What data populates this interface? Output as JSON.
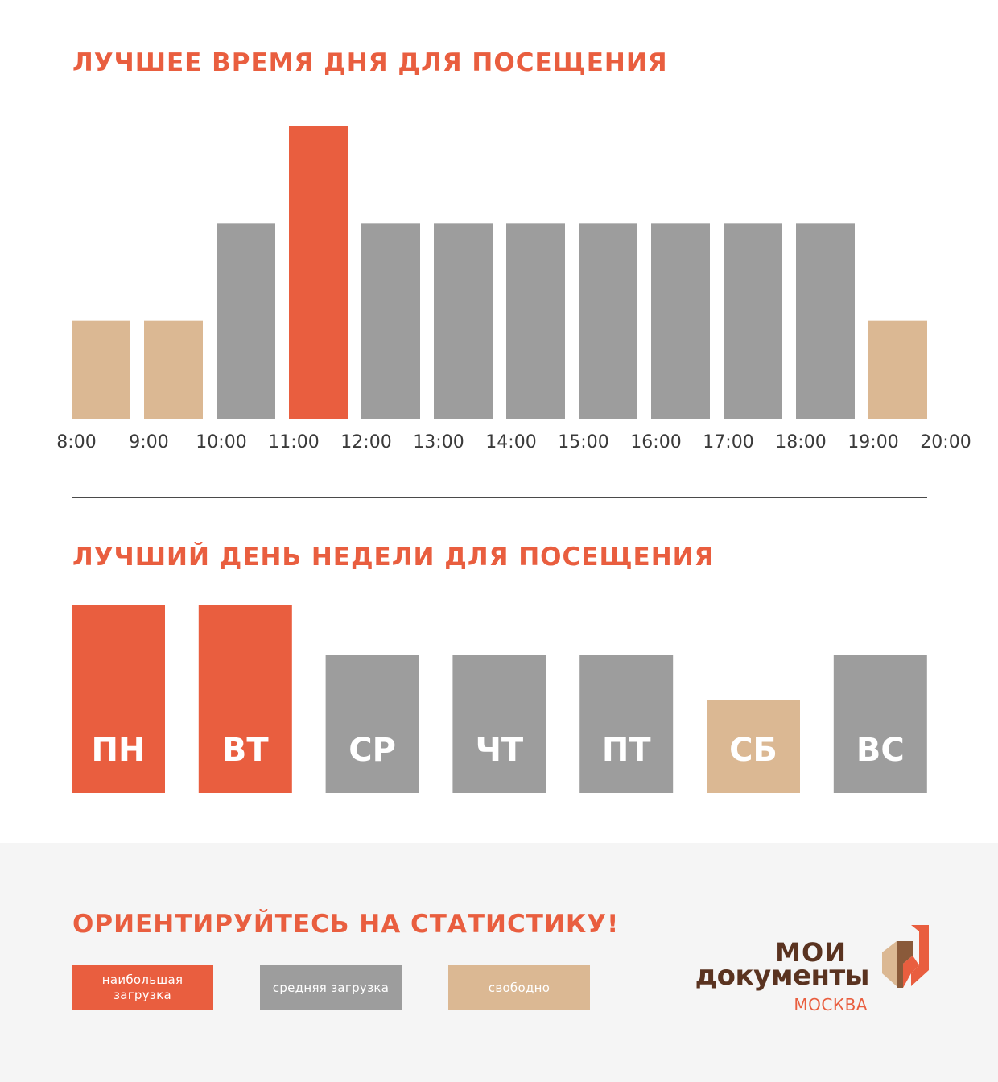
{
  "colors": {
    "max": "#e95e3f",
    "medium": "#9d9d9d",
    "free": "#dbb893",
    "footer_bg": "#f5f5f5",
    "logo_brown": "#5a3320"
  },
  "section_time": {
    "title": "ЛУЧШЕЕ ВРЕМЯ ДНЯ ДЛЯ ПОСЕЩЕНИЯ"
  },
  "section_week": {
    "title": "ЛУЧШИЙ ДЕНЬ НЕДЕЛИ ДЛЯ ПОСЕЩЕНИЯ"
  },
  "footer": {
    "title": "ОРИЕНТИРУЙТЕСЬ НА СТАТИСТИКУ!",
    "legend": [
      {
        "label": "наибольшая загрузка",
        "level": "max"
      },
      {
        "label": "средняя загрузка",
        "level": "medium"
      },
      {
        "label": "свободно",
        "level": "free"
      }
    ],
    "logo": {
      "line1": "МОИ",
      "line2": "документы",
      "line3": "МОСКВА",
      "icon": "moi-dokumenty-emblem-icon"
    }
  },
  "chart_data": [
    {
      "type": "bar",
      "title": "ЛУЧШЕЕ ВРЕМЯ ДНЯ ДЛЯ ПОСЕЩЕНИЯ",
      "x_ticks": [
        "8:00",
        "9:00",
        "10:00",
        "11:00",
        "12:00",
        "13:00",
        "14:00",
        "15:00",
        "16:00",
        "17:00",
        "18:00",
        "19:00",
        "20:00"
      ],
      "categories": [
        "8:00–9:00",
        "9:00–10:00",
        "10:00–11:00",
        "11:00–12:00",
        "12:00–13:00",
        "13:00–14:00",
        "14:00–15:00",
        "15:00–16:00",
        "16:00–17:00",
        "17:00–18:00",
        "18:00–19:00",
        "19:00–20:00"
      ],
      "values": [
        1,
        1,
        2,
        3,
        2,
        2,
        2,
        2,
        2,
        2,
        2,
        1
      ],
      "levels": [
        "free",
        "free",
        "medium",
        "max",
        "medium",
        "medium",
        "medium",
        "medium",
        "medium",
        "medium",
        "medium",
        "free"
      ],
      "ylim": [
        0,
        3
      ],
      "grid": false
    },
    {
      "type": "bar",
      "title": "ЛУЧШИЙ ДЕНЬ НЕДЕЛИ ДЛЯ ПОСЕЩЕНИЯ",
      "categories": [
        "ПН",
        "ВТ",
        "СР",
        "ЧТ",
        "ПТ",
        "СБ",
        "ВС"
      ],
      "values": [
        3,
        3,
        2,
        2,
        2,
        1,
        2
      ],
      "levels": [
        "max",
        "max",
        "medium",
        "medium",
        "medium",
        "free",
        "medium"
      ],
      "ylim": [
        0,
        3
      ],
      "grid": false
    }
  ]
}
